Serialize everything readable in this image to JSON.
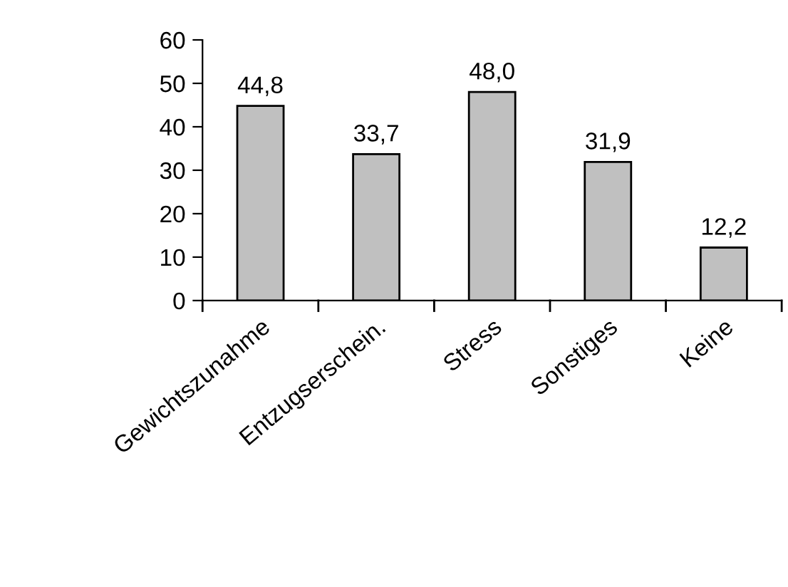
{
  "chart_data": {
    "type": "bar",
    "categories": [
      "Gewichtszunahme",
      "Entzugserschein.",
      "Stress",
      "Sonstiges",
      "Keine"
    ],
    "values": [
      44.8,
      33.7,
      48.0,
      31.9,
      12.2
    ],
    "value_labels": [
      "44,8",
      "33,7",
      "48,0",
      "31,9",
      "12,2"
    ],
    "color": "#c0c0c0",
    "ylim": [
      0,
      60
    ],
    "yticks": [
      0,
      10,
      20,
      30,
      40,
      50,
      60
    ],
    "grid": false,
    "legend": false
  }
}
